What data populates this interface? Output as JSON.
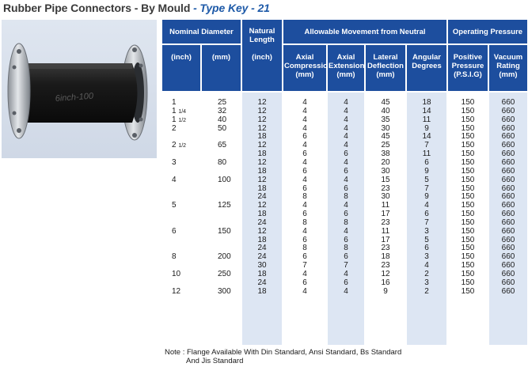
{
  "title": {
    "main": "Rubber Pipe Connectors - By Mould",
    "sub": "- Type Key - 21"
  },
  "photo": {
    "marking": "6inch-100"
  },
  "headers": {
    "nominal_diameter": "Nominal Diameter",
    "natural_length": "Natural Length",
    "allowable_movement": "Allowable Movement from Neutral",
    "operating_pressure": "Operating Pressure",
    "inch": "(inch)",
    "mm": "(mm)",
    "nl_inch": "(inch)",
    "axial_compression": "Axial Compression (mm)",
    "axial_extension": "Axial Extension (mm)",
    "lateral_deflection": "Lateral Deflection (mm)",
    "angular_degrees": "Angular Degrees",
    "positive_pressure": "Positive Pressure (P.S.I.G)",
    "vacuum_rating": "Vacuum Rating (mm)"
  },
  "sizes": [
    {
      "inch": "1",
      "mm": "25"
    },
    {
      "inch": "1 1/4",
      "mm": "32"
    },
    {
      "inch": "1 1/2",
      "mm": "40"
    },
    {
      "inch": "2",
      "mm": "50"
    },
    {
      "inch": "2 1/2",
      "mm": "65"
    },
    {
      "inch": "3",
      "mm": "80"
    },
    {
      "inch": "4",
      "mm": "100"
    },
    {
      "inch": "5",
      "mm": "125"
    },
    {
      "inch": "6",
      "mm": "150"
    },
    {
      "inch": "8",
      "mm": "200"
    },
    {
      "inch": "10",
      "mm": "250"
    },
    {
      "inch": "12",
      "mm": "300"
    }
  ],
  "rows": [
    [
      "12",
      "4",
      "4",
      "45",
      "18",
      "150",
      "660"
    ],
    [
      "12",
      "4",
      "4",
      "40",
      "14",
      "150",
      "660"
    ],
    [
      "12",
      "4",
      "4",
      "35",
      "11",
      "150",
      "660"
    ],
    [
      "12",
      "4",
      "4",
      "30",
      "9",
      "150",
      "660"
    ],
    [
      "18",
      "6",
      "4",
      "45",
      "14",
      "150",
      "660"
    ],
    [
      "12",
      "4",
      "4",
      "25",
      "7",
      "150",
      "660"
    ],
    [
      "18",
      "6",
      "6",
      "38",
      "11",
      "150",
      "660"
    ],
    [
      "12",
      "4",
      "4",
      "20",
      "6",
      "150",
      "660"
    ],
    [
      "18",
      "6",
      "6",
      "30",
      "9",
      "150",
      "660"
    ],
    [
      "12",
      "4",
      "4",
      "15",
      "5",
      "150",
      "660"
    ],
    [
      "18",
      "6",
      "6",
      "23",
      "7",
      "150",
      "660"
    ],
    [
      "24",
      "8",
      "8",
      "30",
      "9",
      "150",
      "660"
    ],
    [
      "12",
      "4",
      "4",
      "11",
      "4",
      "150",
      "660"
    ],
    [
      "18",
      "6",
      "6",
      "17",
      "6",
      "150",
      "660"
    ],
    [
      "24",
      "8",
      "8",
      "23",
      "7",
      "150",
      "660"
    ],
    [
      "12",
      "4",
      "4",
      "11",
      "3",
      "150",
      "660"
    ],
    [
      "18",
      "6",
      "6",
      "17",
      "5",
      "150",
      "660"
    ],
    [
      "24",
      "8",
      "8",
      "23",
      "6",
      "150",
      "660"
    ],
    [
      "24",
      "6",
      "6",
      "18",
      "3",
      "150",
      "660"
    ],
    [
      "30",
      "7",
      "7",
      "23",
      "4",
      "150",
      "660"
    ],
    [
      "18",
      "4",
      "4",
      "12",
      "2",
      "150",
      "660"
    ],
    [
      "24",
      "6",
      "6",
      "16",
      "3",
      "150",
      "660"
    ],
    [
      "18",
      "4",
      "4",
      "9",
      "2",
      "150",
      "660"
    ]
  ],
  "note": {
    "line1": "Note : Flange Available With Din Standard, Ansi Standard, Bs Standard",
    "line2": "And Jis Standard"
  }
}
